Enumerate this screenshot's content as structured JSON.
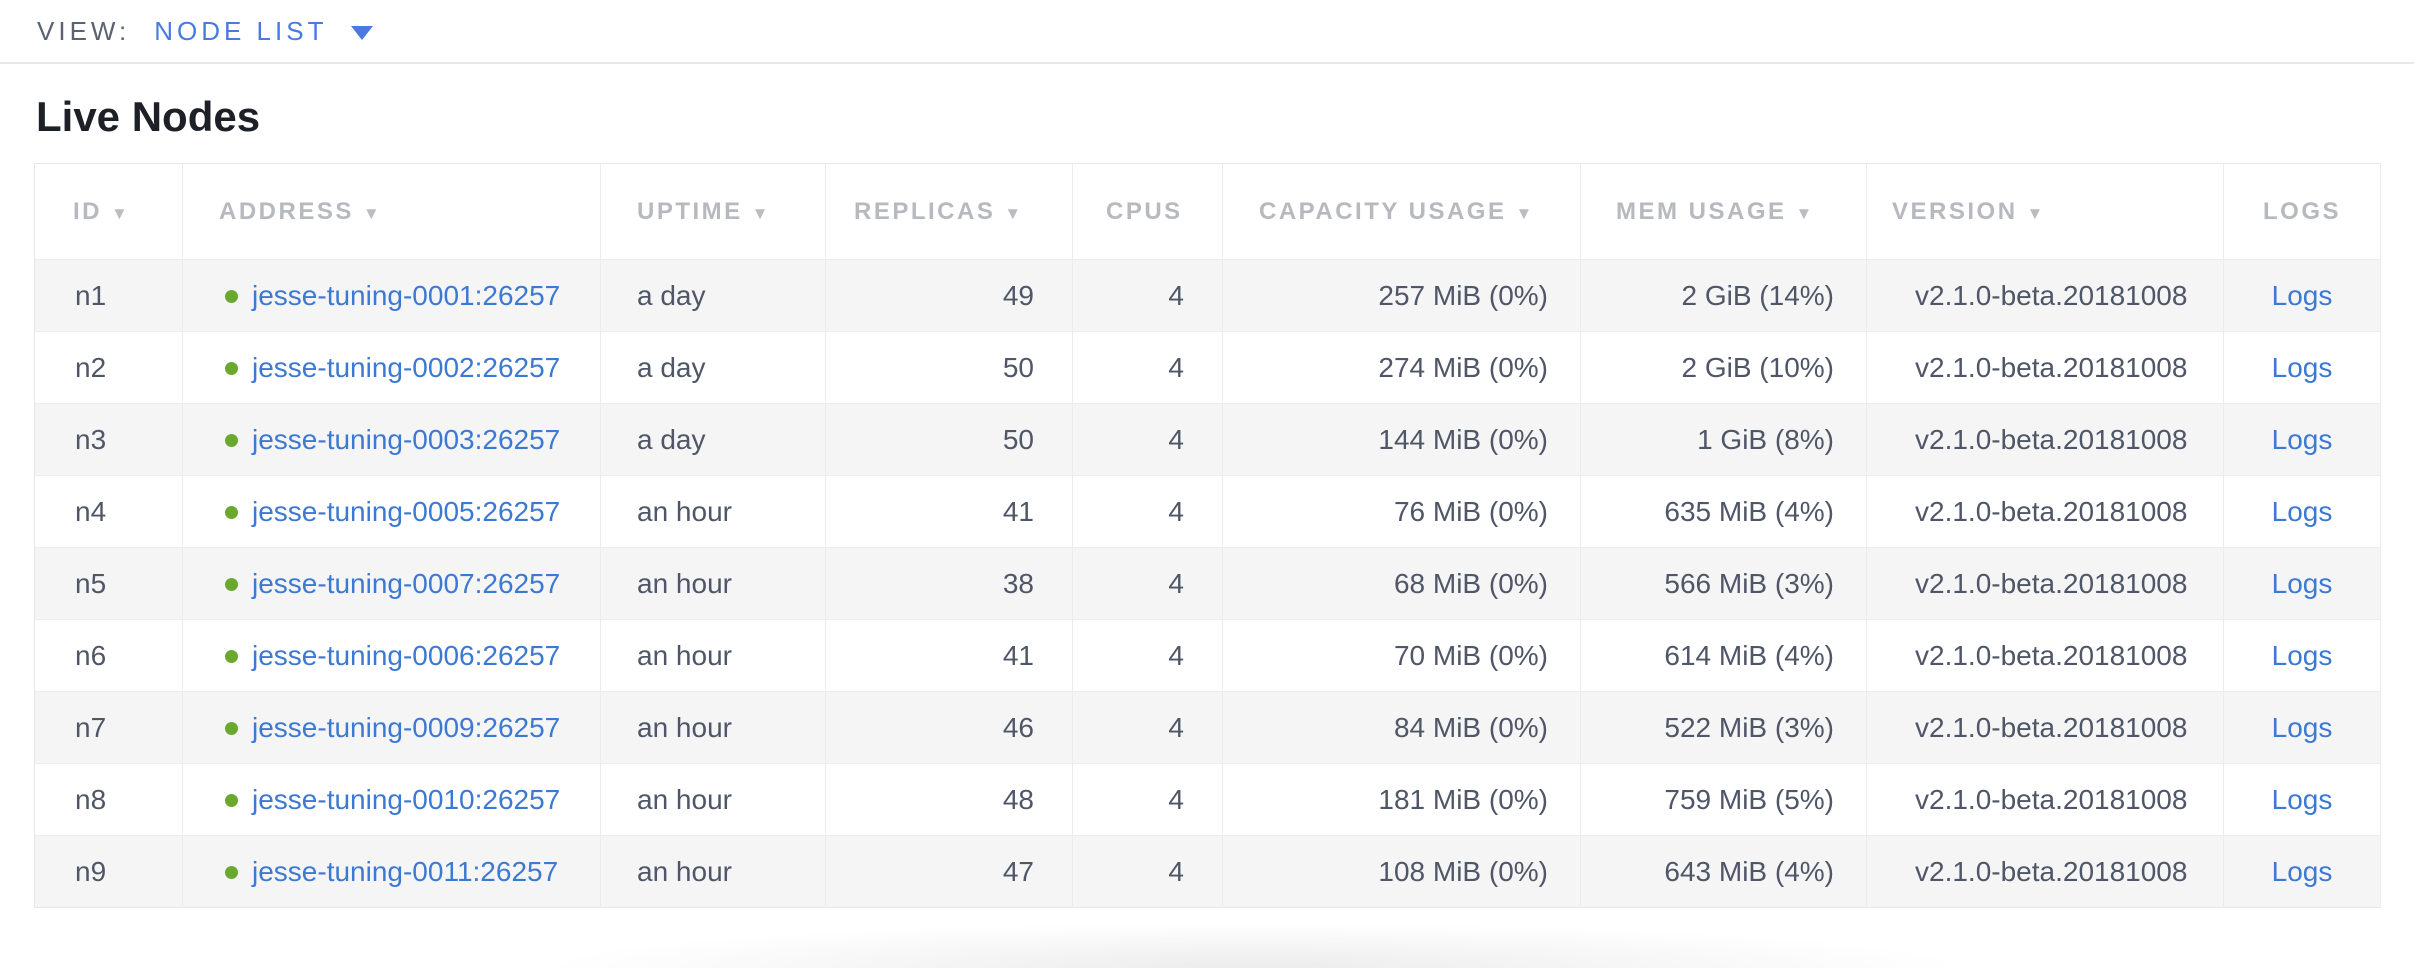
{
  "view_bar": {
    "label": "VIEW:",
    "selected": "NODE LIST"
  },
  "page": {
    "title": "Live Nodes"
  },
  "table": {
    "sort_icon": "▼",
    "columns": [
      {
        "key": "id",
        "label": "ID",
        "sortable": true,
        "align": "left"
      },
      {
        "key": "address",
        "label": "ADDRESS",
        "sortable": true,
        "align": "left"
      },
      {
        "key": "uptime",
        "label": "UPTIME",
        "sortable": true,
        "align": "left"
      },
      {
        "key": "replicas",
        "label": "REPLICAS",
        "sortable": true,
        "align": "right"
      },
      {
        "key": "cpus",
        "label": "CPUS",
        "sortable": false,
        "align": "right"
      },
      {
        "key": "capacity",
        "label": "CAPACITY USAGE",
        "sortable": true,
        "align": "right"
      },
      {
        "key": "mem",
        "label": "MEM USAGE",
        "sortable": true,
        "align": "right"
      },
      {
        "key": "version",
        "label": "VERSION",
        "sortable": true,
        "align": "left"
      },
      {
        "key": "logs",
        "label": "LOGS",
        "sortable": false,
        "align": "center"
      }
    ],
    "rows": [
      {
        "id": "n1",
        "status": "live",
        "address": "jesse-tuning-0001:26257",
        "uptime": "a day",
        "replicas": "49",
        "cpus": "4",
        "capacity": "257 MiB (0%)",
        "mem": "2 GiB (14%)",
        "version": "v2.1.0-beta.20181008",
        "logs": "Logs"
      },
      {
        "id": "n2",
        "status": "live",
        "address": "jesse-tuning-0002:26257",
        "uptime": "a day",
        "replicas": "50",
        "cpus": "4",
        "capacity": "274 MiB (0%)",
        "mem": "2 GiB (10%)",
        "version": "v2.1.0-beta.20181008",
        "logs": "Logs"
      },
      {
        "id": "n3",
        "status": "live",
        "address": "jesse-tuning-0003:26257",
        "uptime": "a day",
        "replicas": "50",
        "cpus": "4",
        "capacity": "144 MiB (0%)",
        "mem": "1 GiB (8%)",
        "version": "v2.1.0-beta.20181008",
        "logs": "Logs"
      },
      {
        "id": "n4",
        "status": "live",
        "address": "jesse-tuning-0005:26257",
        "uptime": "an hour",
        "replicas": "41",
        "cpus": "4",
        "capacity": "76 MiB (0%)",
        "mem": "635 MiB (4%)",
        "version": "v2.1.0-beta.20181008",
        "logs": "Logs"
      },
      {
        "id": "n5",
        "status": "live",
        "address": "jesse-tuning-0007:26257",
        "uptime": "an hour",
        "replicas": "38",
        "cpus": "4",
        "capacity": "68 MiB (0%)",
        "mem": "566 MiB (3%)",
        "version": "v2.1.0-beta.20181008",
        "logs": "Logs"
      },
      {
        "id": "n6",
        "status": "live",
        "address": "jesse-tuning-0006:26257",
        "uptime": "an hour",
        "replicas": "41",
        "cpus": "4",
        "capacity": "70 MiB (0%)",
        "mem": "614 MiB (4%)",
        "version": "v2.1.0-beta.20181008",
        "logs": "Logs"
      },
      {
        "id": "n7",
        "status": "live",
        "address": "jesse-tuning-0009:26257",
        "uptime": "an hour",
        "replicas": "46",
        "cpus": "4",
        "capacity": "84 MiB (0%)",
        "mem": "522 MiB (3%)",
        "version": "v2.1.0-beta.20181008",
        "logs": "Logs"
      },
      {
        "id": "n8",
        "status": "live",
        "address": "jesse-tuning-0010:26257",
        "uptime": "an hour",
        "replicas": "48",
        "cpus": "4",
        "capacity": "181 MiB (0%)",
        "mem": "759 MiB (5%)",
        "version": "v2.1.0-beta.20181008",
        "logs": "Logs"
      },
      {
        "id": "n9",
        "status": "live",
        "address": "jesse-tuning-0011:26257",
        "uptime": "an hour",
        "replicas": "47",
        "cpus": "4",
        "capacity": "108 MiB (0%)",
        "mem": "643 MiB (4%)",
        "version": "v2.1.0-beta.20181008",
        "logs": "Logs"
      }
    ]
  },
  "colors": {
    "link_blue": "#3c79d2",
    "selector_blue": "#487ae0",
    "live_green": "#6aa82f",
    "header_gray": "#b6b9be",
    "cell_text": "#4e5667",
    "row_stripe": "#f5f5f6"
  }
}
